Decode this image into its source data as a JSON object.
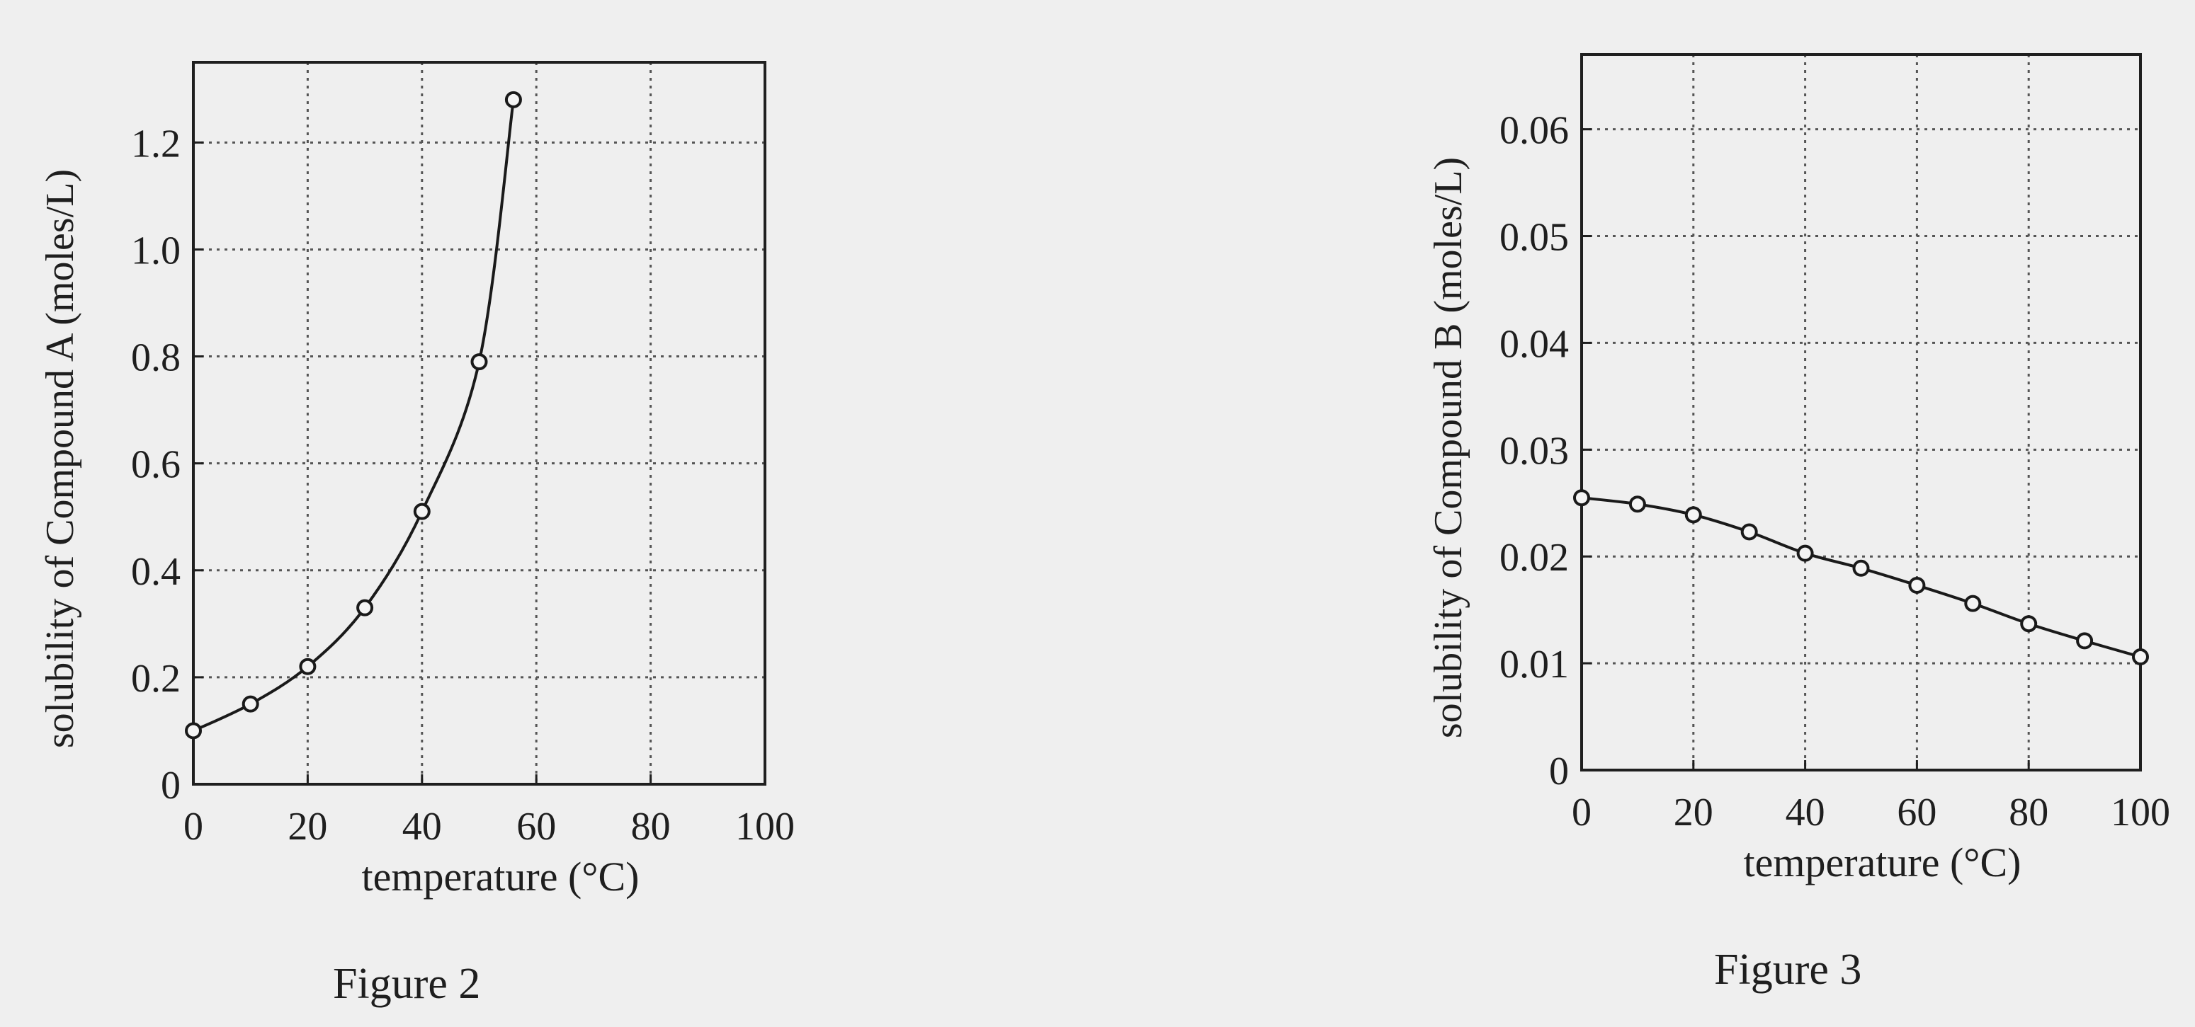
{
  "chart_data": [
    {
      "type": "line",
      "caption": "Figure 2",
      "xlabel": "temperature (°C)",
      "ylabel": "solubility of Compound A (moles/L)",
      "xlim": [
        0,
        100
      ],
      "ylim": [
        0,
        1.35
      ],
      "x_ticks": [
        0,
        20,
        40,
        60,
        80,
        100
      ],
      "x_tick_labels": [
        "0",
        "20",
        "40",
        "60",
        "80",
        "100"
      ],
      "y_ticks": [
        0,
        0.2,
        0.4,
        0.6,
        0.8,
        1.0,
        1.2
      ],
      "y_tick_labels": [
        "0",
        "0.2",
        "0.4",
        "0.6",
        "0.8",
        "1.0",
        "1.2"
      ],
      "grid": true,
      "series": [
        {
          "x": [
            0,
            10,
            20,
            30,
            40,
            50,
            56
          ],
          "values": [
            0.1,
            0.15,
            0.22,
            0.33,
            0.51,
            0.79,
            1.28
          ]
        }
      ]
    },
    {
      "type": "line",
      "caption": "Figure 3",
      "xlabel": "temperature (°C)",
      "ylabel": "solubility of Compound B (moles/L)",
      "xlim": [
        0,
        100
      ],
      "ylim": [
        0,
        0.067
      ],
      "x_ticks": [
        0,
        20,
        40,
        60,
        80,
        100
      ],
      "x_tick_labels": [
        "0",
        "20",
        "40",
        "60",
        "80",
        "100"
      ],
      "y_ticks": [
        0,
        0.01,
        0.02,
        0.03,
        0.04,
        0.05,
        0.06
      ],
      "y_tick_labels": [
        "0",
        "0.01",
        "0.02",
        "0.03",
        "0.04",
        "0.05",
        "0.06"
      ],
      "grid": true,
      "series": [
        {
          "x": [
            0,
            10,
            20,
            30,
            40,
            50,
            60,
            70,
            80,
            90,
            100
          ],
          "values": [
            0.0255,
            0.0249,
            0.0239,
            0.0223,
            0.0203,
            0.0189,
            0.0173,
            0.0156,
            0.0137,
            0.0121,
            0.0106
          ]
        }
      ]
    }
  ]
}
